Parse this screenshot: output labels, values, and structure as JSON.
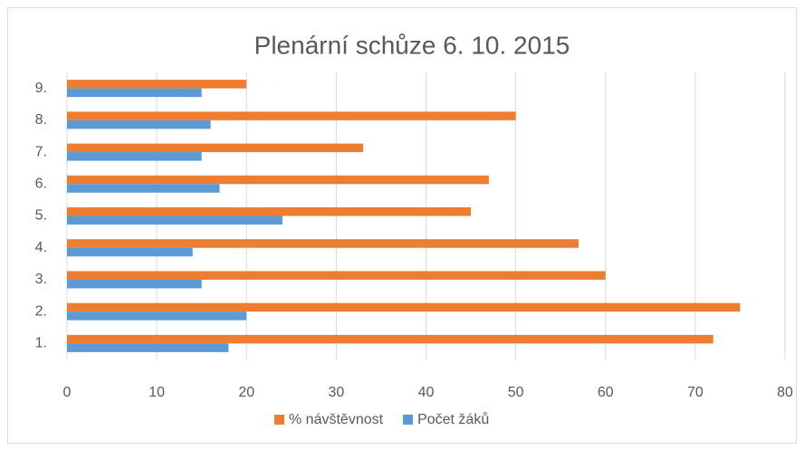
{
  "chart_data": {
    "type": "barh",
    "title": "Plenární schůze 6. 10. 2015",
    "categories": [
      "1.",
      "2.",
      "3.",
      "4.",
      "5.",
      "6.",
      "7.",
      "8.",
      "9."
    ],
    "series": [
      {
        "name": "% návštěvnost",
        "color": "#ed7d31",
        "values": [
          72,
          75,
          60,
          57,
          45,
          47,
          33,
          50,
          20
        ]
      },
      {
        "name": "Počet žáků",
        "color": "#5b9bd5",
        "values": [
          18,
          20,
          15,
          14,
          24,
          17,
          15,
          16,
          15
        ]
      }
    ],
    "xlim": [
      0,
      80
    ],
    "xticks": [
      0,
      10,
      20,
      30,
      40,
      50,
      60,
      70,
      80
    ],
    "grid": true
  }
}
